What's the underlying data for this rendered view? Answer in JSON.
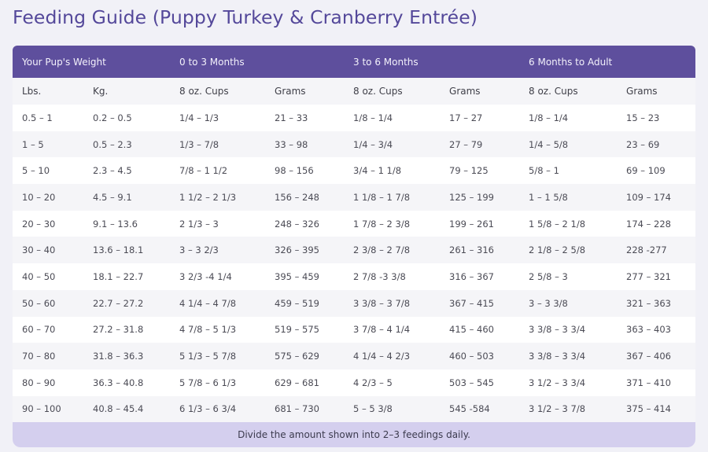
{
  "title": "Feeding Guide (Puppy Turkey & Cranberry Entrée)",
  "colors": {
    "title": "#54489a",
    "header_bg": "#5e4f9d",
    "footer_bg": "#d4cfee"
  },
  "table": {
    "group_headers": [
      "Your Pup's Weight",
      "0 to 3 Months",
      "3 to 6 Months",
      "6 Months to Adult"
    ],
    "sub_headers": [
      "Lbs.",
      "Kg.",
      "8 oz. Cups",
      "Grams",
      "8 oz. Cups",
      "Grams",
      "8 oz. Cups",
      "Grams"
    ],
    "rows": [
      [
        "0.5 – 1",
        "0.2 – 0.5",
        "1/4 – 1/3",
        "21 – 33",
        "1/8 – 1/4",
        "17 – 27",
        "1/8 – 1/4",
        "15 – 23"
      ],
      [
        "1 – 5",
        "0.5 – 2.3",
        "1/3 – 7/8",
        "33 – 98",
        "1/4 – 3/4",
        "27 – 79",
        "1/4 – 5/8",
        "23 – 69"
      ],
      [
        "5 – 10",
        "2.3 – 4.5",
        "7/8 – 1 1/2",
        "98 – 156",
        "3/4 – 1 1/8",
        "79 – 125",
        "5/8 – 1",
        "69 – 109"
      ],
      [
        "10 – 20",
        "4.5 – 9.1",
        "1 1/2 – 2 1/3",
        "156 – 248",
        "1 1/8 – 1 7/8",
        "125 – 199",
        "1 – 1 5/8",
        "109 – 174"
      ],
      [
        "20 – 30",
        "9.1 – 13.6",
        "2 1/3 – 3",
        "248 – 326",
        "1 7/8 – 2 3/8",
        "199 – 261",
        "1 5/8 – 2 1/8",
        "174 – 228"
      ],
      [
        "30 – 40",
        "13.6 – 18.1",
        "3 – 3 2/3",
        "326 – 395",
        "2 3/8 – 2 7/8",
        "261 – 316",
        "2 1/8 – 2 5/8",
        "228 -277"
      ],
      [
        "40 – 50",
        "18.1 – 22.7",
        "3 2/3 -4 1/4",
        "395 – 459",
        "2 7/8 -3 3/8",
        "316 – 367",
        "2 5/8 – 3",
        "277 – 321"
      ],
      [
        "50 – 60",
        "22.7 – 27.2",
        "4 1/4 – 4 7/8",
        "459 – 519",
        "3 3/8 – 3 7/8",
        "367 – 415",
        "3 – 3 3/8",
        "321 – 363"
      ],
      [
        "60 – 70",
        "27.2 – 31.8",
        "4 7/8 – 5 1/3",
        "519 – 575",
        "3 7/8 – 4 1/4",
        "415 – 460",
        "3 3/8 – 3 3/4",
        "363 – 403"
      ],
      [
        "70 – 80",
        "31.8 – 36.3",
        "5 1/3 – 5 7/8",
        "575 – 629",
        "4 1/4 – 4 2/3",
        "460 – 503",
        "3 3/8 – 3 3/4",
        "367 – 406"
      ],
      [
        "80 – 90",
        "36.3 – 40.8",
        "5 7/8 – 6 1/3",
        "629 – 681",
        "4 2/3 – 5",
        "503 – 545",
        "3 1/2 – 3 3/4",
        "371 – 410"
      ],
      [
        "90 – 100",
        "40.8 – 45.4",
        "6 1/3 – 6 3/4",
        "681 – 730",
        "5 – 5 3/8",
        "545 -584",
        "3 1/2 – 3 7/8",
        "375 – 414"
      ]
    ]
  },
  "footer_note": "Divide the amount shown into 2–3 feedings daily."
}
